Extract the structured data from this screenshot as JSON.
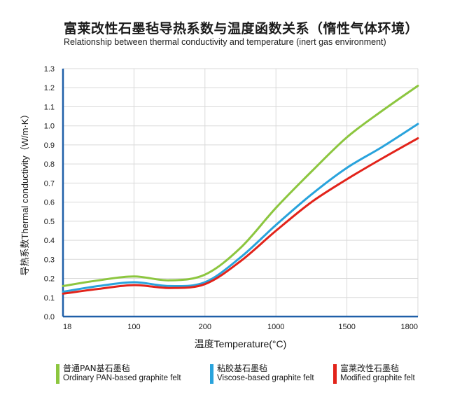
{
  "header": {
    "title_zh": "富莱改性石墨毡导热系数与温度函数关系（惰性气体环境）",
    "title_en": "Relationship between thermal conductivity and temperature (inert gas environment)"
  },
  "chart_data": {
    "type": "line",
    "title": "富莱改性石墨毡导热系数与温度函数关系（惰性气体环境）",
    "subtitle": "Relationship between thermal conductivity and temperature (inert gas environment)",
    "xlabel": "温度Temperature(°C)",
    "ylabel": "导热系数Thermal conductivity（W/m·K）",
    "x_categories": [
      "18",
      "100",
      "200",
      "1000",
      "1500",
      "1800"
    ],
    "ylim": [
      0,
      1.3
    ],
    "y_ticks": [
      "0.0",
      "0.1",
      "0.2",
      "0.3",
      "0.4",
      "0.5",
      "0.6",
      "0.7",
      "0.8",
      "0.9",
      "1.0",
      "1.1",
      "1.2",
      "1.3"
    ],
    "grid": true,
    "legend_position": "bottom",
    "series": [
      {
        "name": "普通PAN基石墨毡",
        "name_en": "Ordinary PAN-based graphite felt",
        "color": "#8cc63f",
        "points": [
          [
            0,
            0.16
          ],
          [
            0.5,
            0.19
          ],
          [
            1,
            0.21
          ],
          [
            1.5,
            0.19
          ],
          [
            2,
            0.22
          ],
          [
            2.5,
            0.36
          ],
          [
            3,
            0.57
          ],
          [
            3.5,
            0.76
          ],
          [
            4,
            0.94
          ],
          [
            4.5,
            1.08
          ],
          [
            5,
            1.21
          ]
        ]
      },
      {
        "name": "粘胶基石墨毡",
        "name_en": "Viscose-based graphite felt",
        "color": "#29a3dc",
        "points": [
          [
            0,
            0.13
          ],
          [
            0.5,
            0.16
          ],
          [
            1,
            0.18
          ],
          [
            1.5,
            0.16
          ],
          [
            2,
            0.18
          ],
          [
            2.5,
            0.31
          ],
          [
            3,
            0.48
          ],
          [
            3.5,
            0.64
          ],
          [
            4,
            0.78
          ],
          [
            4.5,
            0.89
          ],
          [
            5,
            1.01
          ]
        ]
      },
      {
        "name": "富莱改性石墨毡",
        "name_en": "Modified graphite felt",
        "color": "#e2231a",
        "points": [
          [
            0,
            0.12
          ],
          [
            0.5,
            0.145
          ],
          [
            1,
            0.165
          ],
          [
            1.5,
            0.15
          ],
          [
            2,
            0.17
          ],
          [
            2.5,
            0.29
          ],
          [
            3,
            0.45
          ],
          [
            3.5,
            0.6
          ],
          [
            4,
            0.72
          ],
          [
            4.5,
            0.83
          ],
          [
            5,
            0.935
          ]
        ]
      }
    ]
  }
}
